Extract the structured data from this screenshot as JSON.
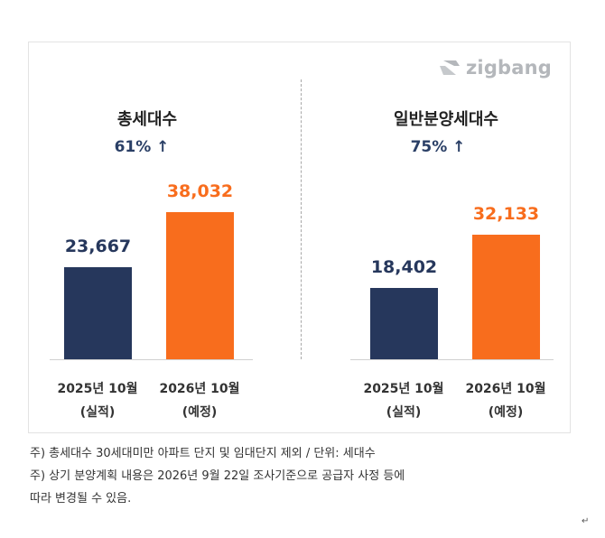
{
  "logo": {
    "text": "zigbang"
  },
  "colors": {
    "actual": "#26375c",
    "forecast": "#f86d1d",
    "growth_text": "#2a3f66"
  },
  "chart_data": [
    {
      "type": "bar",
      "title": "총세대수",
      "growth": "61% ↑",
      "categories": [
        "2025년 10월",
        "2026년 10월"
      ],
      "subcategories": [
        "(실적)",
        "(예정)"
      ],
      "values": [
        23667,
        38032
      ],
      "value_labels": [
        "23,667",
        "38,032"
      ],
      "ylim": [
        0,
        40000
      ]
    },
    {
      "type": "bar",
      "title": "일반분양세대수",
      "growth": "75% ↑",
      "categories": [
        "2025년 10월",
        "2026년 10월"
      ],
      "subcategories": [
        "(실적)",
        "(예정)"
      ],
      "values": [
        18402,
        32133
      ],
      "value_labels": [
        "18,402",
        "32,133"
      ],
      "ylim": [
        0,
        40000
      ]
    }
  ],
  "notes": [
    "주) 총세대수 30세대미만 아파트  단지 및 임대단지 제외 / 단위: 세대수",
    "주) 상기 분양계획 내용은 2026년 9월 22일 조사기준으로 공급자 사정 등에",
    "따라 변경될 수 있음."
  ],
  "return_mark": "↵"
}
